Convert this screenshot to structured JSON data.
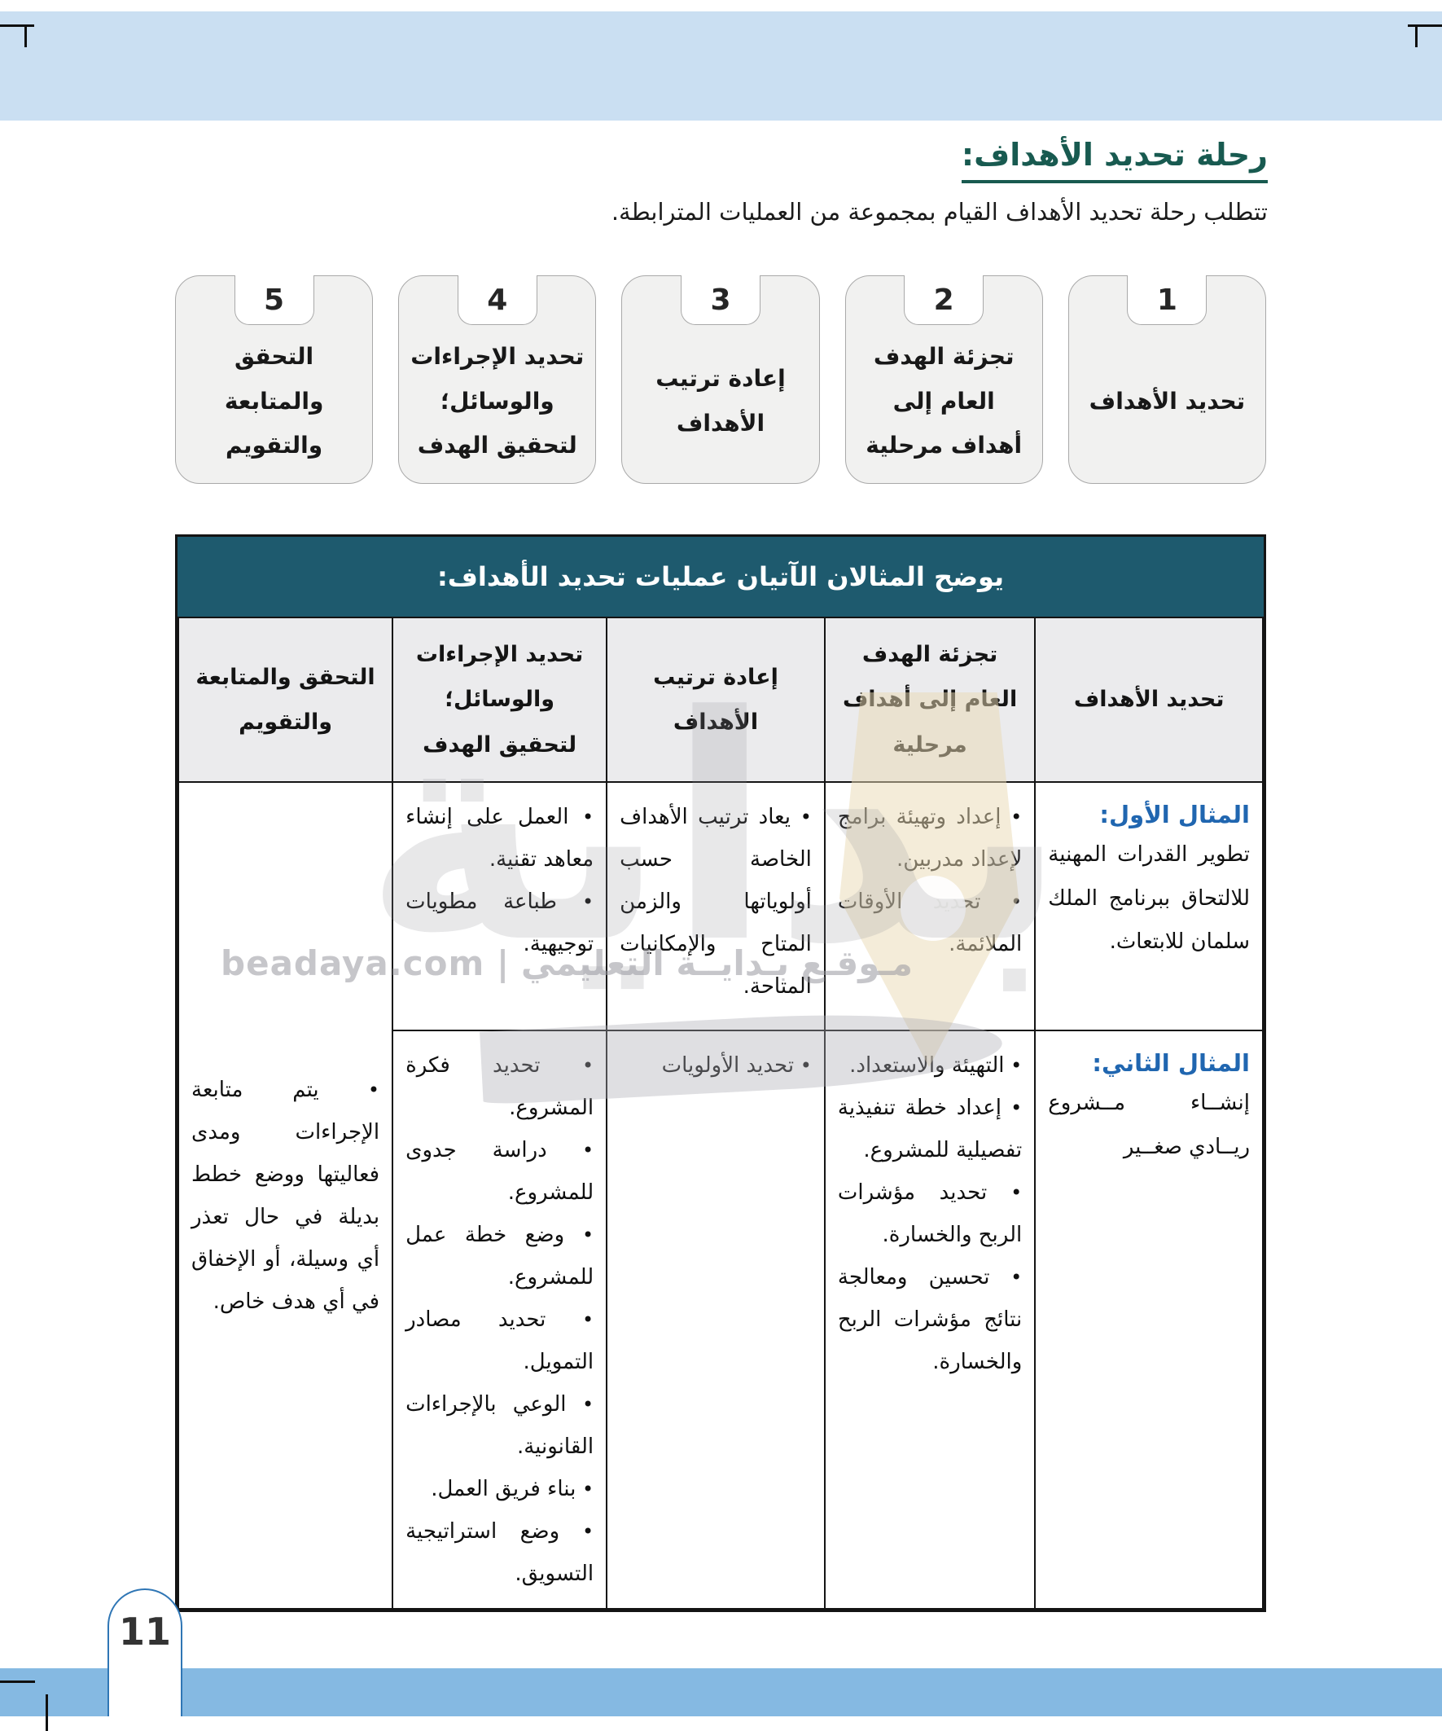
{
  "page": {
    "number": "11",
    "title": "رحلة تحديد الأهداف:",
    "subtitle": "تتطلب رحلة تحديد الأهداف القيام بمجموعة من العمليات المترابطة."
  },
  "steps": [
    {
      "num": "1",
      "label": "تحديد الأهداف"
    },
    {
      "num": "2",
      "label": "تجزئة الهدف العام إلى أهداف مرحلية"
    },
    {
      "num": "3",
      "label": "إعادة ترتيب الأهداف"
    },
    {
      "num": "4",
      "label": "تحديد الإجراءات والوسائل؛ لتحقيق الهدف"
    },
    {
      "num": "5",
      "label": "التحقق والمتابعة والتقويم"
    }
  ],
  "table": {
    "caption": "يوضح المثالان الآتيان عمليات تحديد الأهداف:",
    "columns": [
      "تحديد الأهداف",
      "تجزئة الهدف العام إلى أهداف مرحلية",
      "إعادة ترتيب الأهداف",
      "تحديد الإجراءات والوسائل؛ لتحقيق الهدف",
      "التحقق والمتابعة والتقويم"
    ],
    "rows": [
      {
        "example_label": "المثال الأول:",
        "example_text": "تطوير القدرات المهنية للالتحاق ببرنامج الملك سلمان للابتعاث.",
        "breakdown": [
          "إعداد وتهيئة برامج لإعداد مدربين.",
          "تحديد الأوقات الملائمة."
        ],
        "reorder": [
          "يعاد ترتيب الأهداف الخاصة حسب أولوياتها والزمن المتاح والإمكانيات المتاحة."
        ],
        "procedures": [
          "العمل على إنشاء معاهد تقنية.",
          "طباعة مطويات توجيهية."
        ]
      },
      {
        "example_label": "المثال الثاني:",
        "example_text": "إنشــاء مــشروع ريــادي صغــير",
        "breakdown": [
          "التهيئة والاستعداد.",
          "إعداد خطة تنفيذية تفصيلية للمشروع.",
          "تحديد مؤشرات الربح والخسارة.",
          "تحسين ومعالجة نتائج مؤشرات الربح والخسارة."
        ],
        "reorder": [
          "تحديد الأولويات"
        ],
        "procedures": [
          "تحديد فكرة المشروع.",
          "دراسة جدوى للمشروع.",
          "وضع خطة عمل للمشروع.",
          "تحديد مصادر التمويل.",
          "الوعي بالإجراءات القانونية.",
          "بناء فريق العمل.",
          "وضع استراتيجية التسويق."
        ]
      }
    ],
    "followup": [
      "يتم متابعة الإجراءات ومدى فعاليتها ووضع خطط بديلة في حال تعذر أي وسيلة، أو الإخفاق في أي هدف خاص."
    ]
  },
  "watermark": {
    "big": "بداية",
    "site_ar": "مـوقـع بـدايــة التعليمي",
    "separator": "|",
    "site_latin": "beadaya.com"
  },
  "colors": {
    "accent_teal": "#185a50",
    "header_teal": "#1e5a6e",
    "example_blue": "#2066b0",
    "band_light": "#cadff2",
    "band_bottom": "#85b9e2",
    "arch_blue": "#2f76b5"
  }
}
